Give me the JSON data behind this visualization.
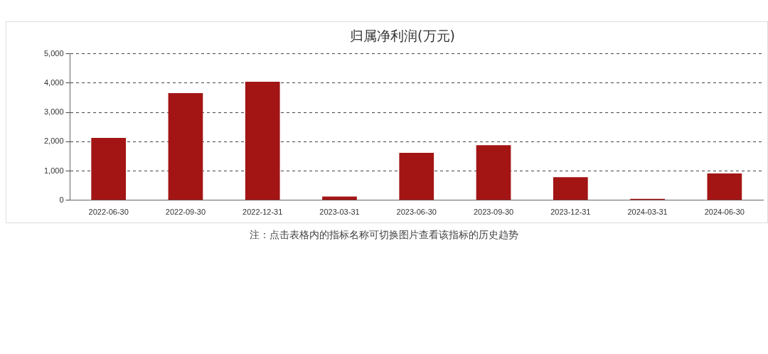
{
  "chart_data": {
    "type": "bar",
    "title": "归属净利润(万元)",
    "categories": [
      "2022-06-30",
      "2022-09-30",
      "2022-12-31",
      "2023-03-31",
      "2023-06-30",
      "2023-09-30",
      "2023-12-31",
      "2024-03-31",
      "2024-06-30"
    ],
    "values": [
      2130,
      3660,
      4050,
      130,
      1620,
      1880,
      790,
      50,
      920
    ],
    "color": "#a31515",
    "ylim": [
      0,
      5000
    ],
    "yticks": [
      {
        "value": 0,
        "label": "0"
      },
      {
        "value": 1000,
        "label": "1,000"
      },
      {
        "value": 2000,
        "label": "2,000"
      },
      {
        "value": 3000,
        "label": "3,000"
      },
      {
        "value": 4000,
        "label": "4,000"
      },
      {
        "value": 5000,
        "label": "5,000"
      }
    ],
    "grid": "y",
    "annotations": [
      "注：点击表格内的指标名称可切换图片查看该指标的历史趋势"
    ]
  }
}
